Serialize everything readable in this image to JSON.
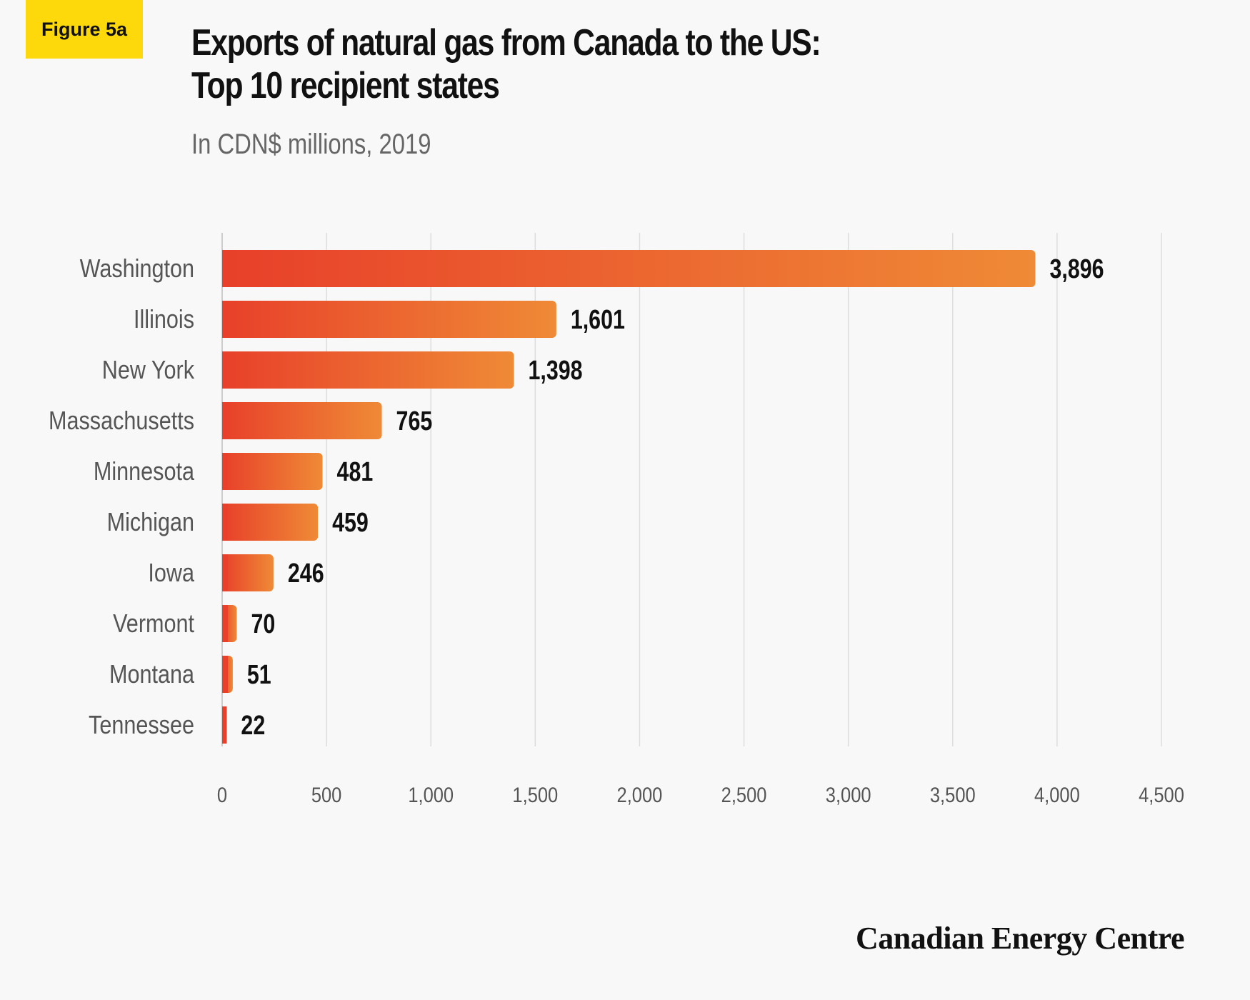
{
  "badge": "Figure 5a",
  "title_line1": "Exports of natural gas from Canada to the US:",
  "title_line2": "Top 10 recipient states",
  "subtitle": "In CDN$ millions, 2019",
  "brand": "Canadian Energy Centre",
  "colors": {
    "bar_start": "#e8402a",
    "bar_end": "#ef8a36",
    "grid": "#dddddd",
    "axis": "#cccccc",
    "category_label": "#555555",
    "tick_label": "#555555",
    "value_label": "#111111"
  },
  "chart_data": {
    "type": "bar",
    "orientation": "horizontal",
    "categories": [
      "Washington",
      "Illinois",
      "New York",
      "Massachusetts",
      "Minnesota",
      "Michigan",
      "Iowa",
      "Vermont",
      "Montana",
      "Tennessee"
    ],
    "values": [
      3896,
      1601,
      1398,
      765,
      481,
      459,
      246,
      70,
      51,
      22
    ],
    "value_labels": [
      "3,896",
      "1,601",
      "1,398",
      "765",
      "481",
      "459",
      "246",
      "70",
      "51",
      "22"
    ],
    "xlim": [
      0,
      4500
    ],
    "x_ticks": [
      0,
      500,
      1000,
      1500,
      2000,
      2500,
      3000,
      3500,
      4000,
      4500
    ],
    "x_tick_labels": [
      "0",
      "500",
      "1,000",
      "1,500",
      "2,000",
      "2,500",
      "3,000",
      "3,500",
      "4,000",
      "4,500"
    ],
    "grid": "vertical"
  }
}
